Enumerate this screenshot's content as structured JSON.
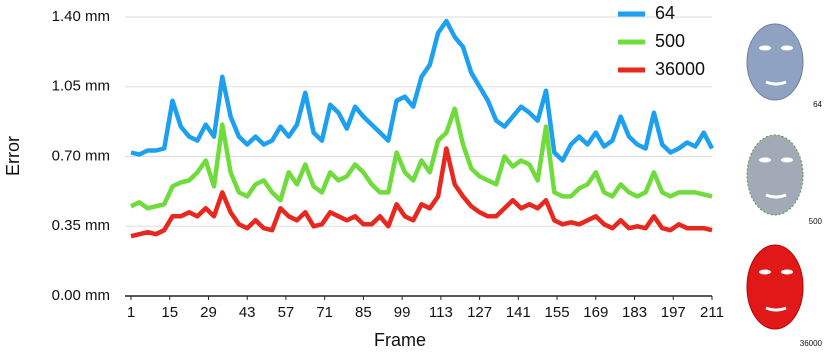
{
  "chart_data": {
    "type": "line",
    "x_label": "Frame",
    "y_label": "Error",
    "xlim": [
      1,
      211
    ],
    "xticks": [
      1,
      15,
      29,
      43,
      57,
      71,
      85,
      99,
      113,
      127,
      141,
      155,
      169,
      183,
      197,
      211
    ],
    "ylim": [
      0,
      1.4
    ],
    "yticks": [
      {
        "value": 0,
        "label": "0.00 mm"
      },
      {
        "value": 0.35,
        "label": "0.35 mm"
      },
      {
        "value": 0.7,
        "label": "0.70 mm"
      },
      {
        "value": 1.05,
        "label": "1.05 mm"
      },
      {
        "value": 1.4,
        "label": "1.40 mm"
      }
    ],
    "grid": true,
    "legend": "top-right",
    "x": [
      1,
      4,
      7,
      10,
      13,
      16,
      19,
      22,
      25,
      28,
      31,
      34,
      37,
      40,
      43,
      46,
      49,
      52,
      55,
      58,
      61,
      64,
      67,
      70,
      73,
      76,
      79,
      82,
      85,
      88,
      91,
      94,
      97,
      100,
      103,
      106,
      109,
      112,
      115,
      118,
      121,
      124,
      127,
      130,
      133,
      136,
      139,
      142,
      145,
      148,
      151,
      154,
      157,
      160,
      163,
      166,
      169,
      172,
      175,
      178,
      181,
      184,
      187,
      190,
      193,
      196,
      199,
      202,
      205,
      208,
      211
    ],
    "series": [
      {
        "name": "64",
        "color": "#1ea0f0",
        "values": [
          0.72,
          0.71,
          0.73,
          0.73,
          0.74,
          0.98,
          0.85,
          0.8,
          0.78,
          0.86,
          0.8,
          1.1,
          0.9,
          0.8,
          0.76,
          0.8,
          0.76,
          0.78,
          0.85,
          0.8,
          0.86,
          1.02,
          0.82,
          0.78,
          0.96,
          0.92,
          0.84,
          0.95,
          0.9,
          0.86,
          0.82,
          0.78,
          0.98,
          1.0,
          0.95,
          1.1,
          1.16,
          1.32,
          1.38,
          1.3,
          1.25,
          1.12,
          1.05,
          0.98,
          0.88,
          0.85,
          0.9,
          0.95,
          0.92,
          0.88,
          1.03,
          0.72,
          0.68,
          0.76,
          0.8,
          0.76,
          0.82,
          0.75,
          0.78,
          0.9,
          0.8,
          0.76,
          0.74,
          0.92,
          0.76,
          0.72,
          0.74,
          0.77,
          0.75,
          0.82,
          0.74
        ]
      },
      {
        "name": "500",
        "color": "#6fdc3c",
        "values": [
          0.45,
          0.47,
          0.44,
          0.45,
          0.46,
          0.55,
          0.57,
          0.58,
          0.62,
          0.68,
          0.55,
          0.86,
          0.62,
          0.52,
          0.5,
          0.56,
          0.58,
          0.52,
          0.48,
          0.62,
          0.56,
          0.66,
          0.55,
          0.52,
          0.62,
          0.58,
          0.6,
          0.66,
          0.62,
          0.56,
          0.52,
          0.52,
          0.72,
          0.62,
          0.58,
          0.68,
          0.62,
          0.78,
          0.82,
          0.94,
          0.76,
          0.64,
          0.6,
          0.58,
          0.56,
          0.7,
          0.65,
          0.68,
          0.66,
          0.58,
          0.85,
          0.52,
          0.5,
          0.5,
          0.54,
          0.56,
          0.62,
          0.52,
          0.5,
          0.56,
          0.52,
          0.5,
          0.52,
          0.62,
          0.52,
          0.5,
          0.52,
          0.52,
          0.52,
          0.51,
          0.5
        ]
      },
      {
        "name": "36000",
        "color": "#e8281e",
        "values": [
          0.3,
          0.31,
          0.32,
          0.31,
          0.33,
          0.4,
          0.4,
          0.42,
          0.4,
          0.44,
          0.4,
          0.52,
          0.42,
          0.36,
          0.34,
          0.38,
          0.34,
          0.33,
          0.44,
          0.4,
          0.38,
          0.42,
          0.35,
          0.36,
          0.42,
          0.4,
          0.38,
          0.4,
          0.36,
          0.36,
          0.4,
          0.35,
          0.46,
          0.4,
          0.38,
          0.46,
          0.44,
          0.5,
          0.74,
          0.56,
          0.5,
          0.45,
          0.42,
          0.4,
          0.4,
          0.44,
          0.48,
          0.44,
          0.46,
          0.44,
          0.48,
          0.38,
          0.36,
          0.37,
          0.36,
          0.38,
          0.4,
          0.36,
          0.34,
          0.38,
          0.34,
          0.35,
          0.34,
          0.4,
          0.34,
          0.33,
          0.36,
          0.34,
          0.34,
          0.34,
          0.33
        ]
      }
    ]
  }
}
